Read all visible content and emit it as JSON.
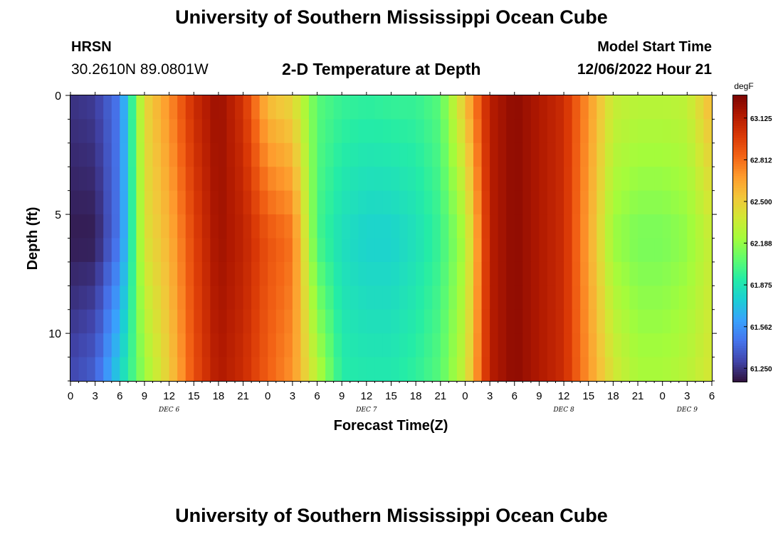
{
  "header": {
    "title": "University of Southern Mississippi Ocean Cube",
    "station_code": "HRSN",
    "station_coords": "30.2610N  89.0801W",
    "subtitle": "2-D Temperature at Depth",
    "model_start_label": "Model Start Time",
    "model_start_value": "12/06/2022 Hour 21"
  },
  "footer": {
    "title": "University of Southern Mississippi Ocean Cube"
  },
  "chart_data": {
    "type": "heatmap",
    "title": "2-D Temperature at Depth",
    "xlabel": "Forecast Time(Z)",
    "ylabel": "Depth (ft)",
    "x_unit": "hours (Z)",
    "x_tick_labels": [
      "0",
      "3",
      "6",
      "9",
      "12",
      "15",
      "18",
      "21",
      "0",
      "3",
      "6",
      "9",
      "12",
      "15",
      "18",
      "21",
      "0",
      "3",
      "6",
      "9",
      "12",
      "15",
      "18",
      "21",
      "0",
      "3",
      "6"
    ],
    "x_day_labels": [
      {
        "label": "DEC 6",
        "tick_index": 4
      },
      {
        "label": "DEC 7",
        "tick_index": 12
      },
      {
        "label": "DEC 8",
        "tick_index": 20
      },
      {
        "label": "DEC 9",
        "tick_index": 25
      }
    ],
    "y_tick_labels": [
      "0",
      "5",
      "10"
    ],
    "y_range_ft": [
      0,
      12
    ],
    "y_inverted": true,
    "colorbar": {
      "unit": "degF",
      "ticks": [
        "63.125",
        "62.812",
        "62.500",
        "62.188",
        "61.875",
        "61.562",
        "61.250"
      ],
      "min": 61.15,
      "max": 63.3,
      "colors": [
        "#30123b",
        "#4145ab",
        "#4675ed",
        "#39a2fc",
        "#1bcfd4",
        "#24eca6",
        "#61fc6c",
        "#a4fc3b",
        "#d1e834",
        "#f3c63a",
        "#fe9b2d",
        "#f36315",
        "#d93806",
        "#b11901",
        "#7a0403"
      ]
    },
    "time_hours": [
      0,
      3,
      6,
      9,
      12,
      15,
      18,
      21,
      24,
      27,
      30,
      33,
      36,
      39,
      42,
      45,
      48,
      51,
      54,
      57,
      60,
      63,
      66,
      69,
      72,
      75,
      78
    ],
    "depths_ft": [
      0,
      6,
      12
    ],
    "temperature_degF_surface": [
      61.25,
      61.28,
      61.48,
      62.45,
      62.72,
      63.05,
      63.22,
      63.02,
      62.55,
      62.45,
      62.05,
      61.97,
      61.95,
      61.97,
      61.97,
      62.05,
      62.55,
      63.12,
      63.25,
      63.15,
      63.05,
      62.7,
      62.35,
      62.3,
      62.3,
      62.32,
      62.6
    ],
    "temperature_degF_mid": [
      61.18,
      61.18,
      61.48,
      62.4,
      62.6,
      62.95,
      63.2,
      63.1,
      62.9,
      62.8,
      62.0,
      61.84,
      61.78,
      61.78,
      61.85,
      61.97,
      62.25,
      63.12,
      63.25,
      63.15,
      63.05,
      62.65,
      62.2,
      62.12,
      62.12,
      62.18,
      62.35
    ],
    "temperature_degF_bottom": [
      61.32,
      61.4,
      61.8,
      62.2,
      62.5,
      62.9,
      63.15,
      63.05,
      62.85,
      62.7,
      62.3,
      61.92,
      61.9,
      61.9,
      61.95,
      62.05,
      62.35,
      63.12,
      63.25,
      63.15,
      63.05,
      62.7,
      62.4,
      62.25,
      62.25,
      62.3,
      62.4
    ]
  }
}
